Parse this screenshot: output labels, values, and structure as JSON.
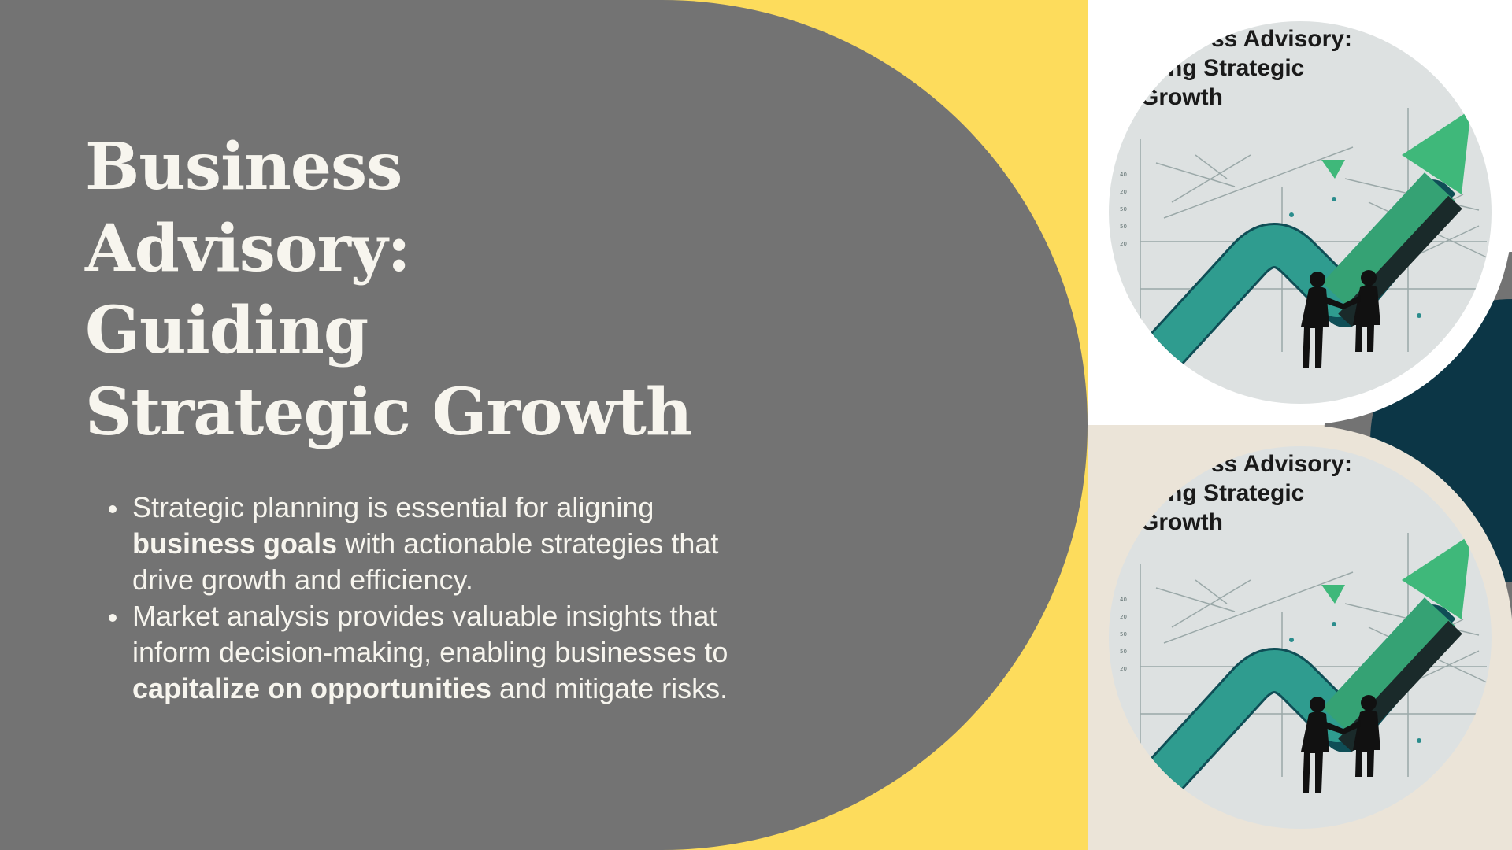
{
  "slide": {
    "title_lines": [
      "Business",
      "Advisory:",
      "Guiding",
      "Strategic Growth"
    ],
    "bullets": [
      {
        "segments": [
          {
            "text": "Strategic planning is essential for aligning ",
            "bold": false
          },
          {
            "text": "business goals",
            "bold": true
          },
          {
            "text": " with actionable strategies that drive growth and efficiency.",
            "bold": false
          }
        ]
      },
      {
        "segments": [
          {
            "text": "Market analysis provides valuable insights that inform decision-making, enabling businesses to ",
            "bold": false
          },
          {
            "text": "capitalize on opportunities",
            "bold": true
          },
          {
            "text": " and mitigate risks.",
            "bold": false
          }
        ]
      }
    ]
  },
  "images": [
    {
      "caption_lines": [
        "ss Advisory:",
        "iding Strategic",
        "Growth"
      ]
    },
    {
      "caption_lines": [
        "ss Advisory:",
        "iding Strategic",
        "Growth"
      ]
    }
  ],
  "colors": {
    "panel_gray": "#737373",
    "accent_yellow": "#fddc5c",
    "accent_navy": "#0c3646",
    "cream": "#ebe4d8",
    "text_light": "#f7f5ee",
    "arrow_green": "#3fb87a",
    "arrow_teal": "#2a8c8c"
  },
  "icons": [
    "growth-arrow-icon",
    "handshake-silhouette-icon"
  ]
}
